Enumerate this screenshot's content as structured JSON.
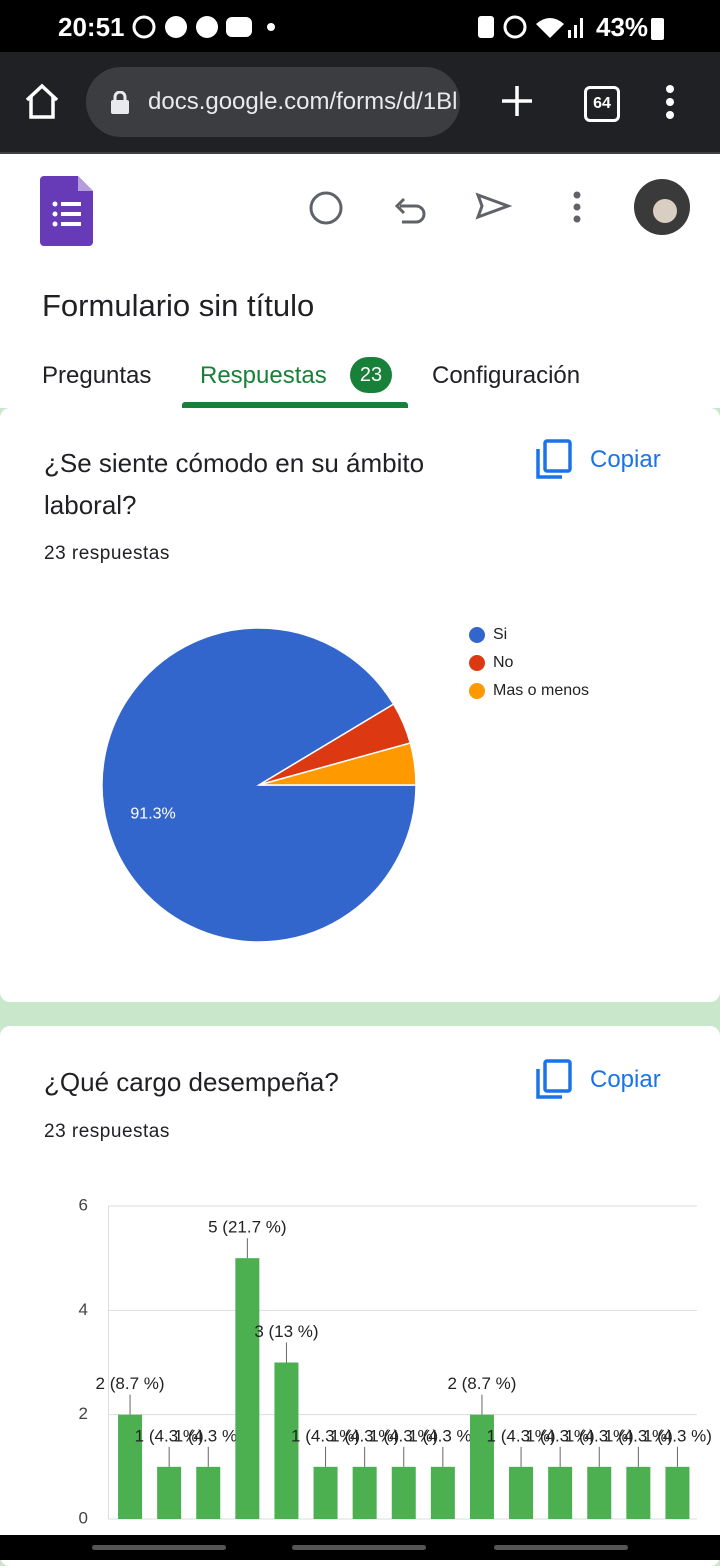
{
  "status_bar": {
    "time": "20:51",
    "battery": "43%"
  },
  "browser": {
    "url": "docs.google.com/forms/d/1Bl",
    "tab_count": "64"
  },
  "header": {
    "title": "Formulario sin título",
    "tabs": [
      "Preguntas",
      "Respuestas",
      "Configuración"
    ],
    "responses_badge": "23"
  },
  "cards": [
    {
      "question": "¿Se siente cómodo en su ámbito laboral?",
      "responses": "23 respuestas",
      "copy": "Copiar",
      "chart_data": {
        "type": "pie",
        "categories": [
          "Si",
          "No",
          "Mas o menos"
        ],
        "values": [
          91.3,
          4.3,
          4.3
        ],
        "value_labels": [
          "91.3%",
          null,
          null
        ],
        "colors": [
          "#3366cc",
          "#dc3912",
          "#ff9900"
        ],
        "legend": "right"
      }
    },
    {
      "question": "¿Qué cargo desempeña?",
      "responses": "23 respuestas",
      "copy": "Copiar",
      "chart_data": {
        "type": "bar",
        "categories": [
          null,
          null,
          null,
          null,
          null,
          null,
          null,
          null,
          null,
          null,
          null,
          null,
          null,
          null,
          null
        ],
        "values": [
          2,
          1,
          1,
          5,
          3,
          1,
          1,
          1,
          1,
          2,
          1,
          1,
          1,
          1,
          1
        ],
        "value_labels": [
          "2 (8.7 %)",
          "1 (4.3 %)",
          "1 (4.3 %)",
          "5 (21.7 %)",
          "3 (13 %)",
          "1 (4.3 %)",
          "1 (4.3 %)",
          "1 (4.3 %)",
          "1 (4.3 %)",
          "2 (8.7 %)",
          "1 (4.3 %)",
          "1 (4.3 %)",
          "1 (4.3 %)",
          "1 (4.3 %)",
          "1 (4.3 %)"
        ],
        "color": "#4caf50",
        "ylim": [
          0,
          6
        ],
        "yticks": [
          0,
          2,
          4,
          6
        ],
        "grid": true
      }
    }
  ]
}
